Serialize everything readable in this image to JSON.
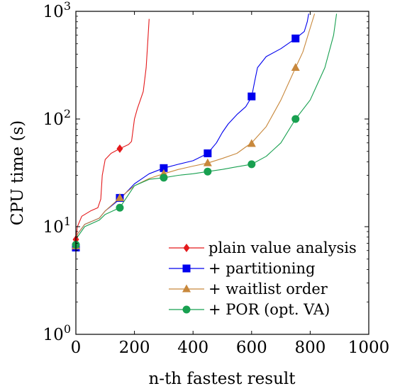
{
  "chart_data": {
    "type": "line",
    "xlabel": "n-th fastest result",
    "ylabel": "CPU time (s)",
    "xlim": [
      0,
      1000
    ],
    "ylim": [
      1,
      1000
    ],
    "y_scale": "log",
    "grid": false,
    "legend_position": "bottom-right",
    "x_ticks": [
      {
        "value": 0,
        "label": "0"
      },
      {
        "value": 200,
        "label": "200"
      },
      {
        "value": 400,
        "label": "400"
      },
      {
        "value": 600,
        "label": "600"
      },
      {
        "value": 800,
        "label": "800"
      },
      {
        "value": 1000,
        "label": "1000"
      }
    ],
    "y_ticks": [
      {
        "value": 1,
        "base": "10",
        "exp": "0"
      },
      {
        "value": 10,
        "base": "10",
        "exp": "1"
      },
      {
        "value": 100,
        "base": "10",
        "exp": "2"
      },
      {
        "value": 1000,
        "base": "10",
        "exp": "3"
      }
    ],
    "series": [
      {
        "name": "plain value analysis",
        "color": "#e41a1c",
        "marker": "diamond",
        "points": [
          [
            0,
            7.5
          ],
          [
            5,
            10
          ],
          [
            20,
            12.5
          ],
          [
            50,
            14
          ],
          [
            75,
            15
          ],
          [
            85,
            18
          ],
          [
            90,
            30
          ],
          [
            100,
            42
          ],
          [
            120,
            48
          ],
          [
            150,
            53
          ],
          [
            180,
            58
          ],
          [
            190,
            62
          ],
          [
            200,
            100
          ],
          [
            210,
            125
          ],
          [
            220,
            150
          ],
          [
            230,
            180
          ],
          [
            240,
            300
          ],
          [
            245,
            500
          ],
          [
            250,
            850
          ]
        ],
        "marker_points": [
          [
            0,
            7.6
          ],
          [
            150,
            53
          ]
        ]
      },
      {
        "name": "+ partitioning",
        "color": "#0000ee",
        "marker": "square",
        "points": [
          [
            0,
            6.3
          ],
          [
            5,
            8.5
          ],
          [
            30,
            10.5
          ],
          [
            80,
            12
          ],
          [
            100,
            14
          ],
          [
            150,
            18
          ],
          [
            200,
            25
          ],
          [
            250,
            31
          ],
          [
            300,
            35
          ],
          [
            350,
            38
          ],
          [
            400,
            41
          ],
          [
            430,
            45
          ],
          [
            450,
            48
          ],
          [
            480,
            60
          ],
          [
            500,
            75
          ],
          [
            520,
            90
          ],
          [
            550,
            110
          ],
          [
            580,
            130
          ],
          [
            600,
            160
          ],
          [
            610,
            220
          ],
          [
            620,
            300
          ],
          [
            650,
            380
          ],
          [
            700,
            450
          ],
          [
            750,
            560
          ],
          [
            780,
            650
          ],
          [
            790,
            800
          ],
          [
            795,
            950
          ]
        ],
        "marker_points": [
          [
            0,
            6.4
          ],
          [
            150,
            18.5
          ],
          [
            300,
            35
          ],
          [
            450,
            48
          ],
          [
            600,
            162
          ],
          [
            750,
            560
          ]
        ]
      },
      {
        "name": "+ waitlist order",
        "color": "#c8883c",
        "marker": "triangle",
        "points": [
          [
            0,
            6.6
          ],
          [
            5,
            8.5
          ],
          [
            30,
            10.5
          ],
          [
            80,
            12
          ],
          [
            100,
            14
          ],
          [
            150,
            18.5
          ],
          [
            200,
            24
          ],
          [
            250,
            28
          ],
          [
            300,
            31
          ],
          [
            350,
            34
          ],
          [
            400,
            36.5
          ],
          [
            450,
            39
          ],
          [
            500,
            43
          ],
          [
            550,
            48
          ],
          [
            580,
            55
          ],
          [
            600,
            60
          ],
          [
            650,
            85
          ],
          [
            700,
            150
          ],
          [
            750,
            300
          ],
          [
            775,
            420
          ],
          [
            800,
            700
          ],
          [
            815,
            950
          ]
        ],
        "marker_points": [
          [
            0,
            6.6
          ],
          [
            150,
            18.5
          ],
          [
            300,
            31
          ],
          [
            450,
            39
          ],
          [
            600,
            59
          ],
          [
            750,
            300
          ]
        ]
      },
      {
        "name": "+ POR (opt. VA)",
        "color": "#18a050",
        "marker": "circle",
        "points": [
          [
            0,
            6.8
          ],
          [
            5,
            8
          ],
          [
            30,
            10
          ],
          [
            80,
            11.5
          ],
          [
            100,
            13
          ],
          [
            150,
            15
          ],
          [
            200,
            24
          ],
          [
            250,
            27.5
          ],
          [
            300,
            28.5
          ],
          [
            350,
            30
          ],
          [
            400,
            31
          ],
          [
            450,
            32.5
          ],
          [
            500,
            34
          ],
          [
            550,
            36
          ],
          [
            600,
            38
          ],
          [
            650,
            45
          ],
          [
            700,
            60
          ],
          [
            750,
            100
          ],
          [
            800,
            150
          ],
          [
            850,
            300
          ],
          [
            880,
            600
          ],
          [
            890,
            950
          ]
        ],
        "marker_points": [
          [
            0,
            6.8
          ],
          [
            150,
            15
          ],
          [
            300,
            28.5
          ],
          [
            450,
            32.5
          ],
          [
            600,
            38
          ],
          [
            750,
            100
          ]
        ]
      }
    ]
  }
}
